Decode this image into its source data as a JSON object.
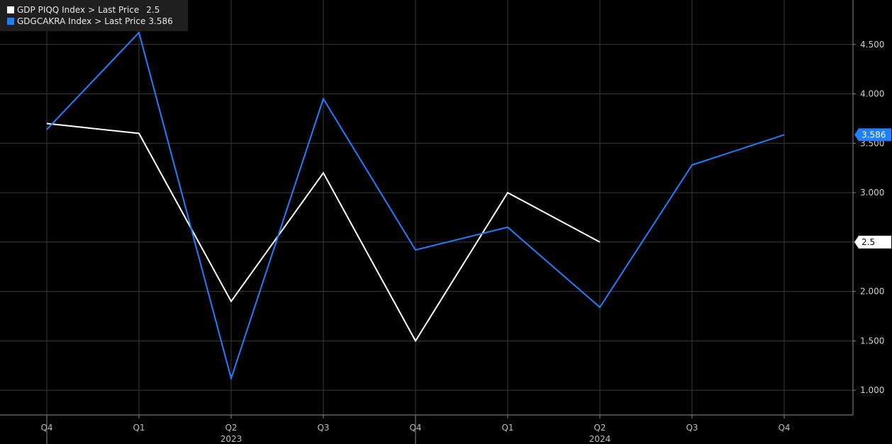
{
  "legend": [
    {
      "index": "GDP PIQQ Index",
      "field": "Last Price",
      "value": "2.5",
      "color": "#ffffff"
    },
    {
      "index": "GDGCAKRA Index",
      "field": "Last Price",
      "value": "3.586",
      "color": "#1e7fff"
    }
  ],
  "legend_separator": ">",
  "chart_data": {
    "type": "line",
    "categories": [
      "Q4",
      "Q1",
      "Q2",
      "Q3",
      "Q4",
      "Q1",
      "Q2",
      "Q3",
      "Q4"
    ],
    "year_labels": [
      {
        "after_index": 2,
        "label": "2023"
      },
      {
        "after_index": 6,
        "label": "2024"
      }
    ],
    "series": [
      {
        "name": "GDP PIQQ Index",
        "color": "#ffffff",
        "values": [
          3.7,
          3.6,
          1.9,
          3.2,
          1.5,
          3.0,
          2.5,
          null,
          null
        ]
      },
      {
        "name": "GDGCAKRA Index",
        "color": "#1e7fff",
        "values": [
          3.64,
          4.62,
          1.12,
          3.95,
          2.42,
          2.65,
          1.84,
          3.28,
          3.586
        ]
      }
    ],
    "ylim": [
      0.75,
      4.95
    ],
    "yticks": [
      1.0,
      1.5,
      2.0,
      2.5,
      3.0,
      3.5,
      4.0,
      4.5
    ],
    "ytick_labels": [
      "1.000",
      "1.500",
      "2.000",
      "2.500",
      "3.000",
      "3.500",
      "4.000",
      "4.500"
    ],
    "last_value_tags": [
      {
        "series": "GDP PIQQ Index",
        "label": "2.5",
        "value": 2.5,
        "bg": "#ffffff",
        "fg": "#000000"
      },
      {
        "series": "GDGCAKRA Index",
        "label": "3.586",
        "value": 3.586,
        "bg": "#1e7fff",
        "fg": "#ffffff"
      }
    ],
    "grid": true,
    "legend_position": "top-left"
  }
}
